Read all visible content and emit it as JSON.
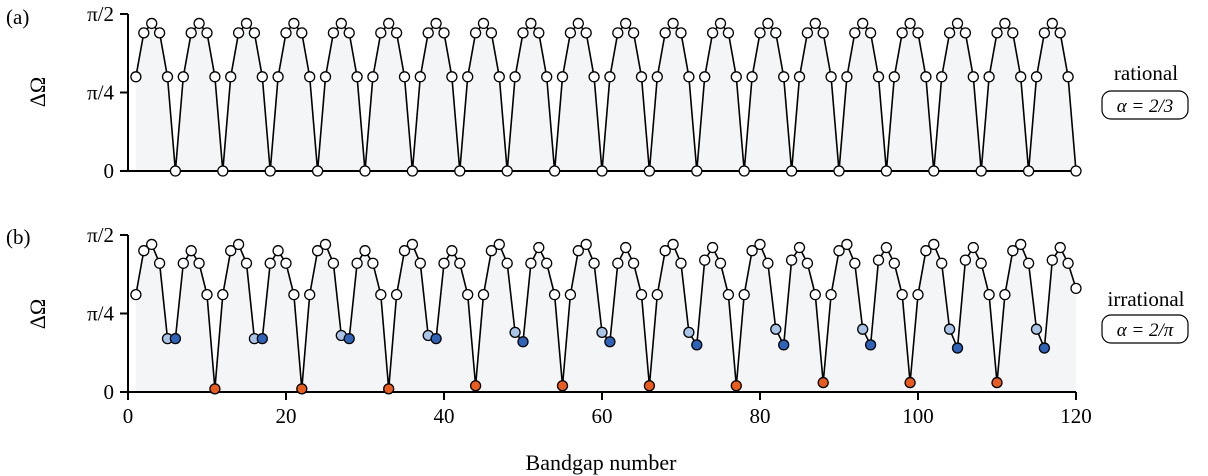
{
  "chart_data": [
    {
      "panel_label": "(a)",
      "type": "line",
      "ylabel": "ΔΩ",
      "y_ticks": [
        {
          "value": 0,
          "label": "0"
        },
        {
          "value": 0.25,
          "label": "π/4"
        },
        {
          "value": 0.5,
          "label": "π/2"
        }
      ],
      "ylim": [
        0,
        0.5
      ],
      "xlim": [
        0,
        120
      ],
      "x_ticks_shown": false,
      "side_label": "rational",
      "badge": "α = 2/3",
      "fill_color": "#f3f5f7",
      "series": [
        {
          "x": [
            1,
            2,
            3,
            4,
            5,
            6,
            7,
            8,
            9,
            10,
            11,
            12,
            13,
            14,
            15,
            16,
            17,
            18,
            19,
            20,
            21,
            22,
            23,
            24,
            25,
            26,
            27,
            28,
            29,
            30,
            31,
            32,
            33,
            34,
            35,
            36,
            37,
            38,
            39,
            40,
            41,
            42,
            43,
            44,
            45,
            46,
            47,
            48,
            49,
            50,
            51,
            52,
            53,
            54,
            55,
            56,
            57,
            58,
            59,
            60,
            61,
            62,
            63,
            64,
            65,
            66,
            67,
            68,
            69,
            70,
            71,
            72,
            73,
            74,
            75,
            76,
            77,
            78,
            79,
            80,
            81,
            82,
            83,
            84,
            85,
            86,
            87,
            88,
            89,
            90,
            91,
            92,
            93,
            94,
            95,
            96,
            97,
            98,
            99,
            100,
            101,
            102,
            103,
            104,
            105,
            106,
            107,
            108,
            109,
            110,
            111,
            112,
            113,
            114,
            115,
            116,
            117,
            118,
            119,
            120
          ],
          "y": [
            0.3,
            0.44,
            0.47,
            0.44,
            0.3,
            0,
            0.3,
            0.44,
            0.47,
            0.44,
            0.3,
            0,
            0.3,
            0.44,
            0.47,
            0.44,
            0.3,
            0,
            0.3,
            0.44,
            0.47,
            0.44,
            0.3,
            0,
            0.3,
            0.44,
            0.47,
            0.44,
            0.3,
            0,
            0.3,
            0.44,
            0.47,
            0.44,
            0.3,
            0,
            0.3,
            0.44,
            0.47,
            0.44,
            0.3,
            0,
            0.3,
            0.44,
            0.47,
            0.44,
            0.3,
            0,
            0.3,
            0.44,
            0.47,
            0.44,
            0.3,
            0,
            0.3,
            0.44,
            0.47,
            0.44,
            0.3,
            0,
            0.3,
            0.44,
            0.47,
            0.44,
            0.3,
            0,
            0.3,
            0.44,
            0.47,
            0.44,
            0.3,
            0,
            0.3,
            0.44,
            0.47,
            0.44,
            0.3,
            0,
            0.3,
            0.44,
            0.47,
            0.44,
            0.3,
            0,
            0.3,
            0.44,
            0.47,
            0.44,
            0.3,
            0,
            0.3,
            0.44,
            0.47,
            0.44,
            0.3,
            0,
            0.3,
            0.44,
            0.47,
            0.44,
            0.3,
            0,
            0.3,
            0.44,
            0.47,
            0.44,
            0.3,
            0,
            0.3,
            0.44,
            0.47,
            0.44,
            0.3,
            0,
            0.3,
            0.44,
            0.47,
            0.44,
            0.3,
            0
          ],
          "highlights": []
        }
      ]
    },
    {
      "panel_label": "(b)",
      "type": "line",
      "ylabel": "ΔΩ",
      "y_ticks": [
        {
          "value": 0,
          "label": "0"
        },
        {
          "value": 0.25,
          "label": "π/4"
        },
        {
          "value": 0.5,
          "label": "π/2"
        }
      ],
      "ylim": [
        0,
        0.5
      ],
      "xlim": [
        0,
        120
      ],
      "x_ticks": [
        {
          "value": 0,
          "label": "0"
        },
        {
          "value": 20,
          "label": "20"
        },
        {
          "value": 40,
          "label": "40"
        },
        {
          "value": 60,
          "label": "60"
        },
        {
          "value": 80,
          "label": "80"
        },
        {
          "value": 100,
          "label": "100"
        },
        {
          "value": 120,
          "label": "120"
        }
      ],
      "xlabel": "Bandgap number",
      "side_label": "irrational",
      "badge": "α = 2/π",
      "fill_color": "#f3f5f7",
      "series": [
        {
          "x": [
            1,
            2,
            3,
            4,
            5,
            6,
            7,
            8,
            9,
            10,
            11,
            12,
            13,
            14,
            15,
            16,
            17,
            18,
            19,
            20,
            21,
            22,
            23,
            24,
            25,
            26,
            27,
            28,
            29,
            30,
            31,
            32,
            33,
            34,
            35,
            36,
            37,
            38,
            39,
            40,
            41,
            42,
            43,
            44,
            45,
            46,
            47,
            48,
            49,
            50,
            51,
            52,
            53,
            54,
            55,
            56,
            57,
            58,
            59,
            60,
            61,
            62,
            63,
            64,
            65,
            66,
            67,
            68,
            69,
            70,
            71,
            72,
            73,
            74,
            75,
            76,
            77,
            78,
            79,
            80,
            81,
            82,
            83,
            84,
            85,
            86,
            87,
            88,
            89,
            90,
            91,
            92,
            93,
            94,
            95,
            96,
            97,
            98,
            99,
            100,
            101,
            102,
            103,
            104,
            105,
            106,
            107,
            108,
            109,
            110,
            111,
            112,
            113,
            114,
            115,
            116,
            117,
            118,
            119,
            120
          ],
          "y": [
            0.31,
            0.45,
            0.47,
            0.41,
            0.17,
            0.17,
            0.41,
            0.45,
            0.41,
            0.31,
            0.01,
            0.31,
            0.45,
            0.47,
            0.41,
            0.17,
            0.17,
            0.41,
            0.45,
            0.41,
            0.31,
            0.01,
            0.31,
            0.45,
            0.47,
            0.41,
            0.18,
            0.17,
            0.41,
            0.45,
            0.41,
            0.31,
            0.01,
            0.31,
            0.45,
            0.47,
            0.41,
            0.18,
            0.17,
            0.41,
            0.45,
            0.41,
            0.31,
            0.02,
            0.31,
            0.45,
            0.47,
            0.41,
            0.19,
            0.16,
            0.41,
            0.46,
            0.41,
            0.31,
            0.02,
            0.31,
            0.45,
            0.47,
            0.41,
            0.19,
            0.16,
            0.41,
            0.46,
            0.41,
            0.31,
            0.02,
            0.31,
            0.45,
            0.47,
            0.41,
            0.19,
            0.15,
            0.42,
            0.46,
            0.41,
            0.31,
            0.02,
            0.31,
            0.45,
            0.47,
            0.41,
            0.2,
            0.15,
            0.42,
            0.46,
            0.41,
            0.31,
            0.03,
            0.31,
            0.45,
            0.47,
            0.41,
            0.2,
            0.15,
            0.42,
            0.46,
            0.41,
            0.31,
            0.03,
            0.31,
            0.45,
            0.47,
            0.41,
            0.2,
            0.14,
            0.42,
            0.46,
            0.41,
            0.31,
            0.03,
            0.31,
            0.45,
            0.47,
            0.41,
            0.2,
            0.14,
            0.42,
            0.46,
            0.41,
            0.33
          ],
          "highlights": [
            {
              "x": 5,
              "color": "#a9c4e6"
            },
            {
              "x": 6,
              "color": "#2e63b8"
            },
            {
              "x": 11,
              "color": "#e85d1f"
            },
            {
              "x": 16,
              "color": "#a9c4e6"
            },
            {
              "x": 17,
              "color": "#2e63b8"
            },
            {
              "x": 22,
              "color": "#e85d1f"
            },
            {
              "x": 27,
              "color": "#a9c4e6"
            },
            {
              "x": 28,
              "color": "#2e63b8"
            },
            {
              "x": 33,
              "color": "#e85d1f"
            },
            {
              "x": 38,
              "color": "#a9c4e6"
            },
            {
              "x": 39,
              "color": "#2e63b8"
            },
            {
              "x": 44,
              "color": "#e85d1f"
            },
            {
              "x": 49,
              "color": "#a9c4e6"
            },
            {
              "x": 50,
              "color": "#2e63b8"
            },
            {
              "x": 55,
              "color": "#e85d1f"
            },
            {
              "x": 60,
              "color": "#a9c4e6"
            },
            {
              "x": 61,
              "color": "#2e63b8"
            },
            {
              "x": 66,
              "color": "#e85d1f"
            },
            {
              "x": 71,
              "color": "#a9c4e6"
            },
            {
              "x": 72,
              "color": "#2e63b8"
            },
            {
              "x": 77,
              "color": "#e85d1f"
            },
            {
              "x": 82,
              "color": "#a9c4e6"
            },
            {
              "x": 83,
              "color": "#2e63b8"
            },
            {
              "x": 88,
              "color": "#e85d1f"
            },
            {
              "x": 93,
              "color": "#a9c4e6"
            },
            {
              "x": 94,
              "color": "#2e63b8"
            },
            {
              "x": 99,
              "color": "#e85d1f"
            },
            {
              "x": 104,
              "color": "#a9c4e6"
            },
            {
              "x": 105,
              "color": "#2e63b8"
            },
            {
              "x": 110,
              "color": "#e85d1f"
            },
            {
              "x": 115,
              "color": "#a9c4e6"
            },
            {
              "x": 116,
              "color": "#2e63b8"
            }
          ]
        }
      ]
    }
  ]
}
